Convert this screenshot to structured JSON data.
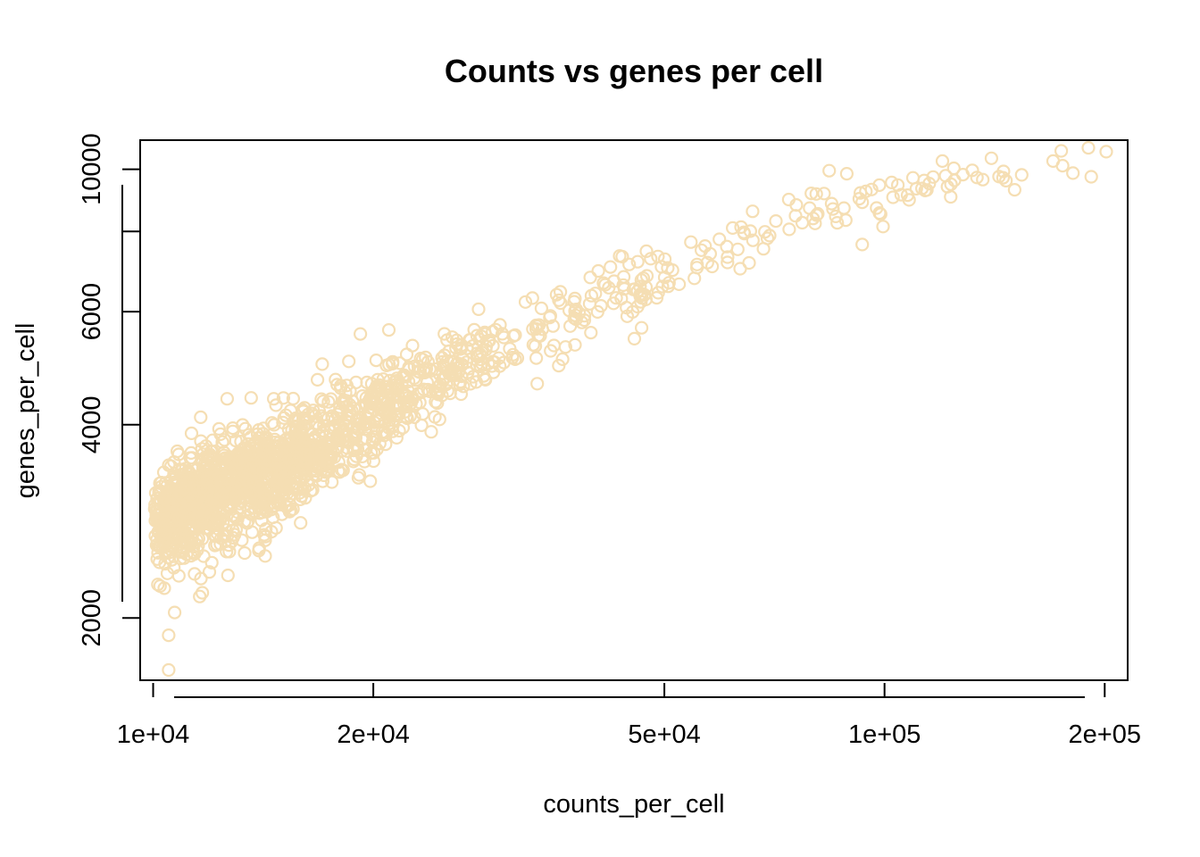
{
  "chart_data": {
    "type": "scatter",
    "title": "Counts vs genes per cell",
    "xlabel": "counts_per_cell",
    "ylabel": "genes_per_cell",
    "x_scale": "log",
    "y_scale": "log",
    "xlim": [
      9600,
      215000
    ],
    "ylim": [
      1600,
      11100
    ],
    "x_ticks": [
      10000,
      20000,
      50000,
      100000,
      200000
    ],
    "x_tick_labels": [
      "1e+04",
      "2e+04",
      "5e+04",
      "1e+05",
      "2e+05"
    ],
    "y_ticks": [
      2000,
      4000,
      6000,
      10000
    ],
    "y_tick_labels": [
      "2000",
      "4000",
      "6000",
      "10000"
    ],
    "y_minor_ticks": [
      8000
    ],
    "point_color": "#F5DEB3",
    "points": [
      [
        10700,
        2040
      ],
      [
        10500,
        1880
      ],
      [
        10500,
        1660
      ],
      [
        21000,
        5620
      ],
      [
        19200,
        5540
      ],
      [
        24000,
        3900
      ],
      [
        33000,
        6300
      ],
      [
        44000,
        6800
      ],
      [
        84000,
        9950
      ],
      [
        120000,
        10300
      ],
      [
        140000,
        10400
      ],
      [
        190000,
        10800
      ],
      [
        201000,
        10650
      ],
      [
        170000,
        10300
      ],
      [
        154000,
        9800
      ],
      [
        96000,
        9300
      ],
      [
        88000,
        8700
      ],
      [
        66000,
        8600
      ],
      [
        79000,
        8700
      ],
      [
        62000,
        8100
      ]
    ],
    "trend": {
      "anchors": [
        [
          10000,
          2800
        ],
        [
          11000,
          2950
        ],
        [
          12000,
          3100
        ],
        [
          13500,
          3280
        ],
        [
          15000,
          3450
        ],
        [
          17000,
          3700
        ],
        [
          19000,
          4000
        ],
        [
          22000,
          4400
        ],
        [
          26000,
          4900
        ],
        [
          30000,
          5300
        ],
        [
          35000,
          5750
        ],
        [
          40000,
          6200
        ],
        [
          50000,
          6800
        ],
        [
          60000,
          7400
        ],
        [
          70000,
          7900
        ],
        [
          80000,
          8350
        ],
        [
          100000,
          9050
        ],
        [
          120000,
          9600
        ],
        [
          150000,
          10100
        ],
        [
          200000,
          10700
        ]
      ],
      "segments": [
        {
          "from": 10050,
          "to": 12000,
          "count": 420,
          "x_spread": 0.02,
          "y_spread": 0.085
        },
        {
          "from": 12000,
          "to": 16000,
          "count": 620,
          "x_spread": 0.03,
          "y_spread": 0.08
        },
        {
          "from": 16000,
          "to": 22000,
          "count": 330,
          "x_spread": 0.03,
          "y_spread": 0.075
        },
        {
          "from": 22000,
          "to": 30000,
          "count": 140,
          "x_spread": 0.025,
          "y_spread": 0.06
        },
        {
          "from": 30000,
          "to": 50000,
          "count": 100,
          "x_spread": 0.025,
          "y_spread": 0.06
        },
        {
          "from": 50000,
          "to": 100000,
          "count": 60,
          "x_spread": 0.02,
          "y_spread": 0.045
        },
        {
          "from": 100000,
          "to": 200000,
          "count": 35,
          "x_spread": 0.015,
          "y_spread": 0.035
        }
      ]
    }
  }
}
